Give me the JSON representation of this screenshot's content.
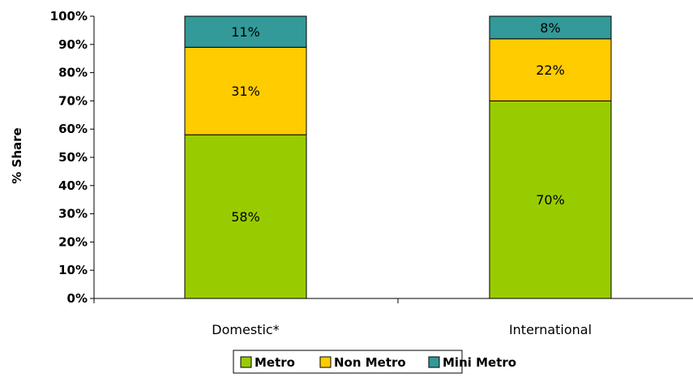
{
  "chart_data": {
    "type": "bar",
    "stacked": true,
    "categories": [
      "Domestic*",
      "International"
    ],
    "series": [
      {
        "name": "Metro",
        "values": [
          58,
          70
        ],
        "labels": [
          "58%",
          "70%"
        ],
        "color": "#99cc00"
      },
      {
        "name": "Non Metro",
        "values": [
          31,
          22
        ],
        "labels": [
          "31%",
          "22%"
        ],
        "color": "#ffcc00"
      },
      {
        "name": "Mini Metro",
        "values": [
          11,
          8
        ],
        "labels": [
          "11%",
          "8%"
        ],
        "color": "#339999"
      }
    ],
    "ylabel": "% Share",
    "ylim": [
      0,
      100
    ],
    "yticks": [
      "0%",
      "10%",
      "20%",
      "30%",
      "40%",
      "50%",
      "60%",
      "70%",
      "80%",
      "90%",
      "100%"
    ],
    "grid": false,
    "legend_position": "bottom"
  }
}
